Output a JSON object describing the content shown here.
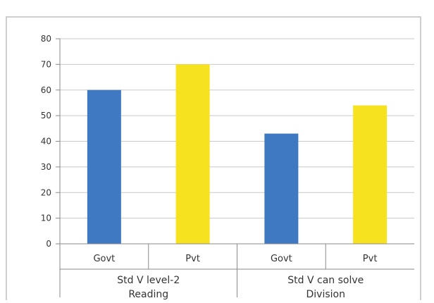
{
  "chart_data": {
    "type": "bar",
    "categories": [
      "Govt",
      "Pvt",
      "Govt",
      "Pvt"
    ],
    "groups": [
      {
        "label_line1": "Std V level-2",
        "label_line2": "Reading",
        "category_indices": [
          0,
          1
        ]
      },
      {
        "label_line1": "Std V can solve",
        "label_line2": "Division",
        "category_indices": [
          2,
          3
        ]
      }
    ],
    "values": [
      60,
      70,
      43,
      54
    ],
    "bar_colors": [
      "#3f79c2",
      "#f7e21f",
      "#3f79c2",
      "#f7e21f"
    ],
    "yticks": [
      "0",
      "10",
      "20",
      "30",
      "40",
      "50",
      "60",
      "70",
      "80"
    ],
    "ylim": [
      0,
      80
    ],
    "grid": true,
    "legend": "none",
    "title": "",
    "xlabel": "",
    "ylabel": ""
  }
}
